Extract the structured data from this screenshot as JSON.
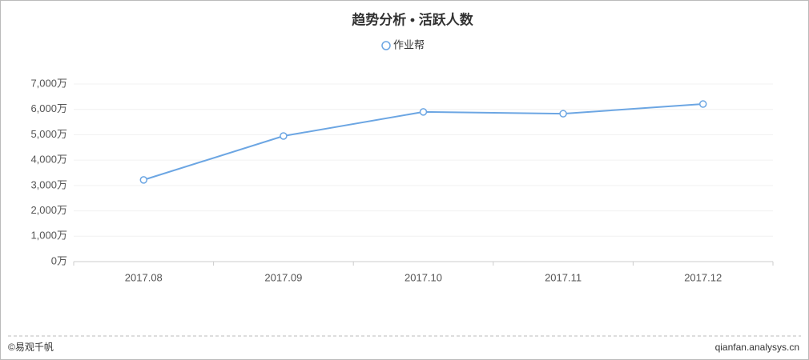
{
  "chart_data": {
    "type": "line",
    "title": "趋势分析 • 活跃人数",
    "categories": [
      "2017.08",
      "2017.09",
      "2017.10",
      "2017.11",
      "2017.12"
    ],
    "series": [
      {
        "name": "作业帮",
        "color": "#6ca6e3",
        "values": [
          3220,
          4950,
          5900,
          5830,
          6210
        ]
      }
    ],
    "ylim": [
      0,
      7000
    ],
    "yticks": [
      {
        "value": 0,
        "label": "0万"
      },
      {
        "value": 1000,
        "label": "1,000万"
      },
      {
        "value": 2000,
        "label": "2,000万"
      },
      {
        "value": 3000,
        "label": "3,000万"
      },
      {
        "value": 4000,
        "label": "4,000万"
      },
      {
        "value": 5000,
        "label": "5,000万"
      },
      {
        "value": 6000,
        "label": "6,000万"
      },
      {
        "value": 7000,
        "label": "7,000万"
      }
    ],
    "grid": true
  },
  "footer": {
    "left": "©易观千帆",
    "right": "qianfan.analysys.cn"
  }
}
